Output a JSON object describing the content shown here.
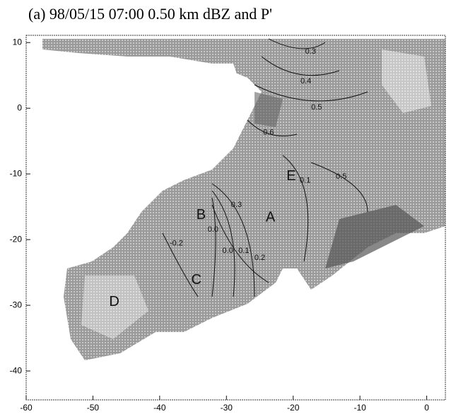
{
  "chart_data": {
    "type": "contour",
    "title": "(a) 98/05/15 07:00  0.50 km  dBZ and P'",
    "xlim": [
      -60,
      2.8
    ],
    "ylim": [
      -44.4,
      11.1
    ],
    "xticks": [
      -60,
      -50,
      -40,
      -30,
      -20,
      -10,
      0
    ],
    "yticks": [
      -40,
      -30,
      -20,
      -10,
      0,
      10
    ],
    "grid": false,
    "annotations": [
      {
        "text": "A",
        "x": -23.4,
        "y": -16.7
      },
      {
        "text": "B",
        "x": -33.8,
        "y": -16.3
      },
      {
        "text": "C",
        "x": -34.5,
        "y": -26.2
      },
      {
        "text": "D",
        "x": -46.8,
        "y": -29.5
      },
      {
        "text": "E",
        "x": -20.3,
        "y": -10.4
      }
    ],
    "contour_labels": [
      {
        "text": "0.3",
        "x": -17.4,
        "y": 8.6
      },
      {
        "text": "0.4",
        "x": -18.1,
        "y": 4.1
      },
      {
        "text": "0.5",
        "x": -16.5,
        "y": 0.1
      },
      {
        "text": "0.6",
        "x": -23.7,
        "y": -3.7
      },
      {
        "text": "0.1",
        "x": -18.2,
        "y": -11
      },
      {
        "text": "0.5",
        "x": -12.8,
        "y": -10.4
      },
      {
        "text": "0.3",
        "x": -28.5,
        "y": -14.7
      },
      {
        "text": "0.0",
        "x": -32,
        "y": -18.5
      },
      {
        "text": "-0.2",
        "x": -37.5,
        "y": -20.6
      },
      {
        "text": "0.0",
        "x": -29.8,
        "y": -21.7
      },
      {
        "text": "0.1",
        "x": -27.4,
        "y": -21.7
      },
      {
        "text": "0.2",
        "x": -25,
        "y": -22.8
      }
    ]
  }
}
